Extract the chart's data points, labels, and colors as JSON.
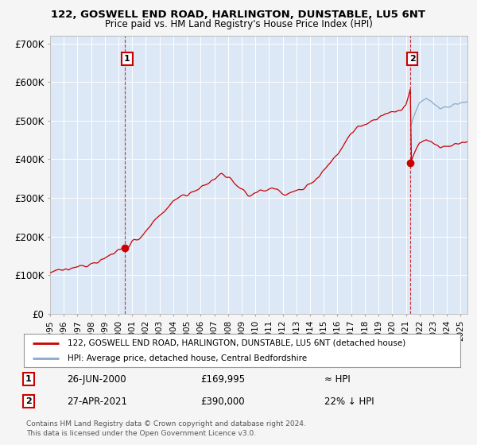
{
  "title": "122, GOSWELL END ROAD, HARLINGTON, DUNSTABLE, LU5 6NT",
  "subtitle": "Price paid vs. HM Land Registry's House Price Index (HPI)",
  "ylabel_ticks": [
    "£0",
    "£100K",
    "£200K",
    "£300K",
    "£400K",
    "£500K",
    "£600K",
    "£700K"
  ],
  "ytick_values": [
    0,
    100000,
    200000,
    300000,
    400000,
    500000,
    600000,
    700000
  ],
  "ylim": [
    0,
    720000
  ],
  "xlim_start": 1995.0,
  "xlim_end": 2025.5,
  "sale1_date": 2000.48,
  "sale1_price": 169995,
  "sale2_date": 2021.33,
  "sale2_price": 390000,
  "sale_color": "#cc0000",
  "hpi_color": "#88aacc",
  "legend_label1": "122, GOSWELL END ROAD, HARLINGTON, DUNSTABLE, LU5 6NT (detached house)",
  "legend_label2": "HPI: Average price, detached house, Central Bedfordshire",
  "table_row1": [
    "1",
    "26-JUN-2000",
    "£169,995",
    "≈ HPI"
  ],
  "table_row2": [
    "2",
    "27-APR-2021",
    "£390,000",
    "22% ↓ HPI"
  ],
  "footer": "Contains HM Land Registry data © Crown copyright and database right 2024.\nThis data is licensed under the Open Government Licence v3.0.",
  "bg_color": "#f5f5f5",
  "plot_bg_color": "#dce8f5",
  "grid_color": "#ffffff"
}
